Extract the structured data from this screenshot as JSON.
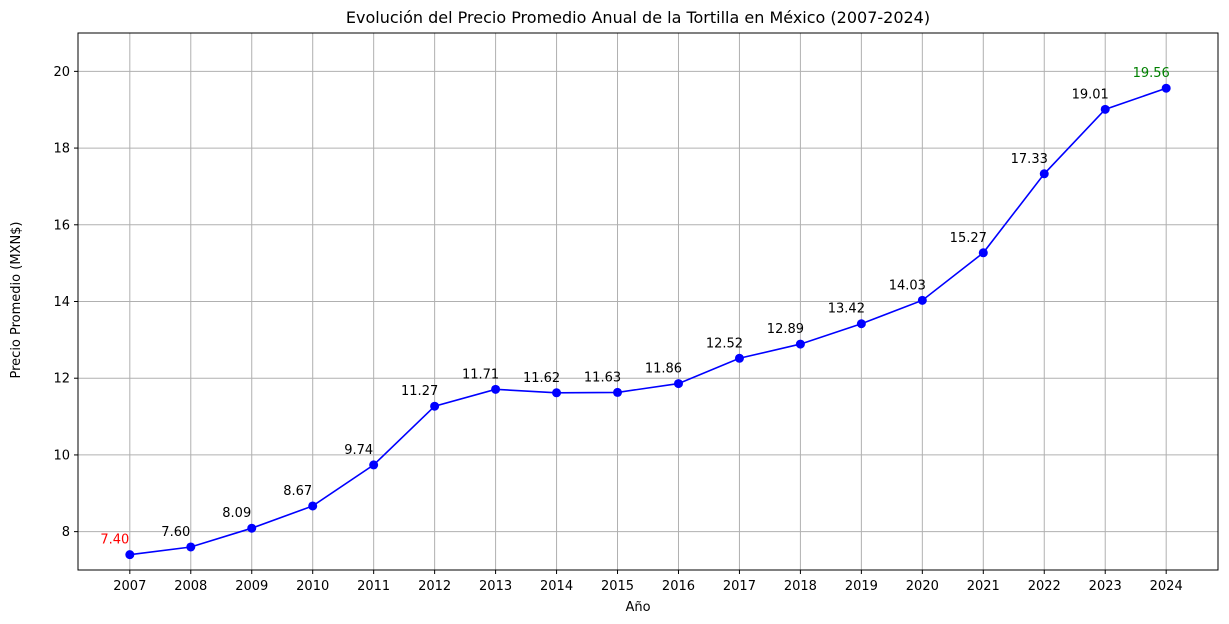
{
  "chart_data": {
    "type": "line",
    "title": "Evolución del Precio Promedio Anual de la Tortilla en México (2007-2024)",
    "xlabel": "Año",
    "ylabel": "Precio Promedio (MXN$)",
    "x": [
      2007,
      2008,
      2009,
      2010,
      2011,
      2012,
      2013,
      2014,
      2015,
      2016,
      2017,
      2018,
      2019,
      2020,
      2021,
      2022,
      2023,
      2024
    ],
    "x_tick_labels": [
      "2007",
      "2008",
      "2009",
      "2010",
      "2011",
      "2012",
      "2013",
      "2014",
      "2015",
      "2016",
      "2017",
      "2018",
      "2019",
      "2020",
      "2021",
      "2022",
      "2023",
      "2024"
    ],
    "series": [
      {
        "values": [
          7.4,
          7.6,
          8.09,
          8.67,
          9.74,
          11.27,
          11.71,
          11.62,
          11.63,
          11.86,
          12.52,
          12.89,
          13.42,
          14.03,
          15.27,
          17.33,
          19.01,
          19.56
        ],
        "color": "#0000ff",
        "marker": "circle"
      }
    ],
    "data_labels": [
      "7.40",
      "7.60",
      "8.09",
      "8.67",
      "9.74",
      "11.27",
      "11.71",
      "11.62",
      "11.63",
      "11.86",
      "12.52",
      "12.89",
      "13.42",
      "14.03",
      "15.27",
      "17.33",
      "19.01",
      "19.56"
    ],
    "label_colors": {
      "default": "#000000",
      "min": "#ff0000",
      "max": "#008000"
    },
    "y_ticks": [
      8,
      10,
      12,
      14,
      16,
      18,
      20
    ],
    "y_tick_labels": [
      "8",
      "10",
      "12",
      "14",
      "16",
      "18",
      "20"
    ],
    "xlim": [
      2006.15,
      2024.85
    ],
    "ylim": [
      7.0,
      21.0
    ],
    "grid": true
  }
}
